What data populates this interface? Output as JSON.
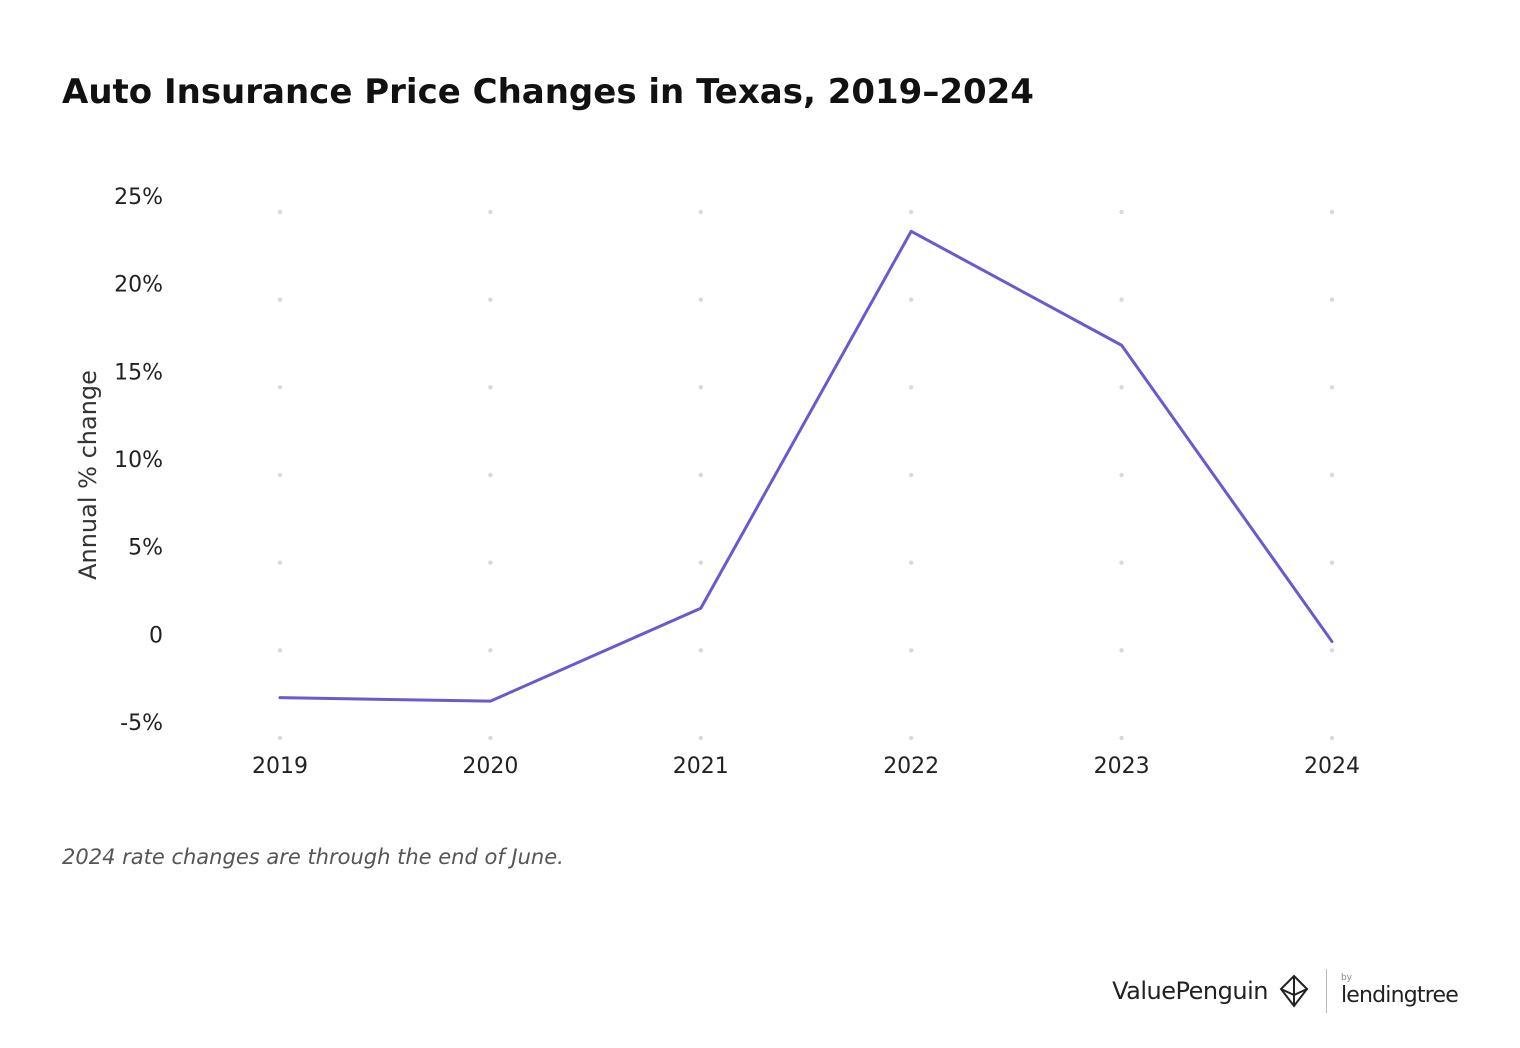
{
  "title": "Auto Insurance Price Changes in Texas, 2019–2024",
  "footnote": "2024 rate changes are through the end of June.",
  "brand": {
    "valuepenguin": "ValuePenguin",
    "by": "by",
    "lendingtree": "lendingtree"
  },
  "colors": {
    "line": "#6a5acd",
    "grid_dot": "#d9d9d9",
    "text": "#222222"
  },
  "chart_data": {
    "type": "line",
    "x": [
      "2019",
      "2020",
      "2021",
      "2022",
      "2023",
      "2024"
    ],
    "series": [
      {
        "values": [
          -2.7,
          -2.9,
          2.4,
          23.9,
          17.4,
          0.5
        ]
      }
    ],
    "ylabel": "Annual % change",
    "ylim": [
      -5,
      25
    ],
    "yticks": [
      25,
      20,
      15,
      10,
      5,
      0,
      -5
    ],
    "ytick_labels": [
      "25%",
      "20%",
      "15%",
      "10%",
      "5%",
      "0",
      "-5%"
    ],
    "grid": "dotted",
    "legend": "none"
  }
}
